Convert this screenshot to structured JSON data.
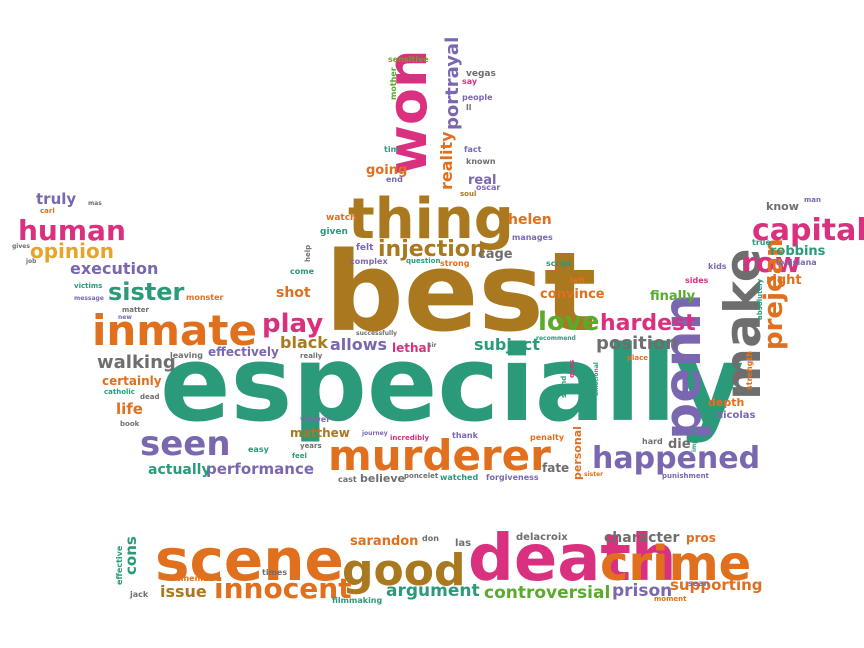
{
  "colors": {
    "teal": "#2a9a7a",
    "orange": "#e0701e",
    "magenta": "#d9307f",
    "brown": "#a9781f",
    "gray": "#6e6e6e",
    "purple": "#7a67b0",
    "green": "#5aaa2e",
    "yellow": "#e6a52a"
  },
  "words": [
    {
      "text": "especially",
      "color": "teal"
    },
    {
      "text": "best",
      "color": "brown"
    },
    {
      "text": "death",
      "color": "magenta"
    },
    {
      "text": "scene",
      "color": "orange"
    },
    {
      "text": "crime",
      "color": "orange"
    },
    {
      "text": "good",
      "color": "brown"
    },
    {
      "text": "murderer",
      "color": "orange"
    },
    {
      "text": "thing",
      "color": "brown"
    },
    {
      "text": "inmate",
      "color": "orange"
    },
    {
      "text": "penn",
      "color": "purple"
    },
    {
      "text": "make",
      "color": "gray"
    },
    {
      "text": "won",
      "color": "magenta"
    },
    {
      "text": "seen",
      "color": "purple"
    },
    {
      "text": "happened",
      "color": "purple"
    },
    {
      "text": "innocent",
      "color": "orange"
    },
    {
      "text": "capital",
      "color": "magenta"
    },
    {
      "text": "human",
      "color": "magenta"
    },
    {
      "text": "sister",
      "color": "teal"
    },
    {
      "text": "play",
      "color": "magenta"
    },
    {
      "text": "love",
      "color": "green"
    },
    {
      "text": "row",
      "color": "magenta"
    },
    {
      "text": "prejean",
      "color": "orange"
    },
    {
      "text": "injection",
      "color": "brown"
    },
    {
      "text": "opinion",
      "color": "yellow"
    },
    {
      "text": "execution",
      "color": "purple"
    },
    {
      "text": "walking",
      "color": "gray"
    },
    {
      "text": "hardest",
      "color": "magenta"
    },
    {
      "text": "position",
      "color": "gray"
    },
    {
      "text": "subject",
      "color": "teal"
    },
    {
      "text": "allows",
      "color": "purple"
    },
    {
      "text": "black",
      "color": "brown"
    },
    {
      "text": "shot",
      "color": "orange"
    },
    {
      "text": "performance",
      "color": "purple"
    },
    {
      "text": "actually",
      "color": "teal"
    },
    {
      "text": "matthew",
      "color": "brown"
    },
    {
      "text": "sarandon",
      "color": "orange"
    },
    {
      "text": "argument",
      "color": "teal"
    },
    {
      "text": "controversial",
      "color": "green"
    },
    {
      "text": "prison",
      "color": "purple"
    },
    {
      "text": "supporting",
      "color": "orange"
    },
    {
      "text": "character",
      "color": "gray"
    },
    {
      "text": "issue",
      "color": "brown"
    },
    {
      "text": "cons",
      "color": "teal"
    },
    {
      "text": "portrayal",
      "color": "purple"
    },
    {
      "text": "reality",
      "color": "orange"
    },
    {
      "text": "going",
      "color": "orange"
    },
    {
      "text": "real",
      "color": "purple"
    },
    {
      "text": "helen",
      "color": "orange"
    },
    {
      "text": "cage",
      "color": "gray"
    },
    {
      "text": "truly",
      "color": "purple"
    },
    {
      "text": "robbins",
      "color": "teal"
    },
    {
      "text": "right",
      "color": "orange"
    },
    {
      "text": "finally",
      "color": "green"
    },
    {
      "text": "convince",
      "color": "orange"
    },
    {
      "text": "effectively",
      "color": "purple"
    },
    {
      "text": "certainly",
      "color": "orange"
    },
    {
      "text": "life",
      "color": "orange"
    },
    {
      "text": "depth",
      "color": "orange"
    },
    {
      "text": "nicolas",
      "color": "purple"
    },
    {
      "text": "die",
      "color": "gray"
    },
    {
      "text": "fate",
      "color": "gray"
    },
    {
      "text": "believe",
      "color": "gray"
    },
    {
      "text": "personal",
      "color": "orange"
    },
    {
      "text": "lethal",
      "color": "magenta"
    },
    {
      "text": "know",
      "color": "gray"
    },
    {
      "text": "pros",
      "color": "orange"
    },
    {
      "text": "las",
      "color": "gray"
    },
    {
      "text": "delacroix",
      "color": "gray"
    },
    {
      "text": "don",
      "color": "gray"
    },
    {
      "text": "effective",
      "color": "teal"
    },
    {
      "text": "cinema",
      "color": "orange"
    },
    {
      "text": "filmmaking",
      "color": "teal"
    },
    {
      "text": "jack",
      "color": "gray"
    },
    {
      "text": "times",
      "color": "gray"
    },
    {
      "text": "sean",
      "color": "purple"
    },
    {
      "text": "moment",
      "color": "orange"
    },
    {
      "text": "sensitive",
      "color": "green"
    },
    {
      "text": "mother",
      "color": "green"
    },
    {
      "text": "vegas",
      "color": "gray"
    },
    {
      "text": "say",
      "color": "magenta"
    },
    {
      "text": "people",
      "color": "purple"
    },
    {
      "text": "ll",
      "color": "gray"
    },
    {
      "text": "fact",
      "color": "purple"
    },
    {
      "text": "known",
      "color": "gray"
    },
    {
      "text": "oscar",
      "color": "purple"
    },
    {
      "text": "soul",
      "color": "brown"
    },
    {
      "text": "tim",
      "color": "teal"
    },
    {
      "text": "end",
      "color": "purple"
    },
    {
      "text": "watch",
      "color": "orange"
    },
    {
      "text": "given",
      "color": "teal"
    },
    {
      "text": "felt",
      "color": "purple"
    },
    {
      "text": "complex",
      "color": "purple"
    },
    {
      "text": "question",
      "color": "teal"
    },
    {
      "text": "strong",
      "color": "orange"
    },
    {
      "text": "help",
      "color": "gray"
    },
    {
      "text": "come",
      "color": "teal"
    },
    {
      "text": "manages",
      "color": "purple"
    },
    {
      "text": "script",
      "color": "teal"
    },
    {
      "text": "left",
      "color": "orange"
    },
    {
      "text": "kids",
      "color": "purple"
    },
    {
      "text": "sides",
      "color": "magenta"
    },
    {
      "text": "strength",
      "color": "orange"
    },
    {
      "text": "absolutely",
      "color": "teal"
    },
    {
      "text": "true",
      "color": "teal"
    },
    {
      "text": "louisiana",
      "color": "purple"
    },
    {
      "text": "man",
      "color": "purple"
    },
    {
      "text": "carl",
      "color": "orange"
    },
    {
      "text": "mas",
      "color": "gray"
    },
    {
      "text": "gives",
      "color": "gray"
    },
    {
      "text": "job",
      "color": "gray"
    },
    {
      "text": "victims",
      "color": "teal"
    },
    {
      "text": "message",
      "color": "purple"
    },
    {
      "text": "matter",
      "color": "gray"
    },
    {
      "text": "new",
      "color": "purple"
    },
    {
      "text": "monster",
      "color": "orange"
    },
    {
      "text": "leaving",
      "color": "gray"
    },
    {
      "text": "catholic",
      "color": "teal"
    },
    {
      "text": "dead",
      "color": "gray"
    },
    {
      "text": "book",
      "color": "gray"
    },
    {
      "text": "successfully",
      "color": "gray"
    },
    {
      "text": "really",
      "color": "gray"
    },
    {
      "text": "sir",
      "color": "gray"
    },
    {
      "text": "recommend",
      "color": "teal"
    },
    {
      "text": "emotional",
      "color": "teal"
    },
    {
      "text": "stand",
      "color": "teal"
    },
    {
      "text": "eyes",
      "color": "magenta"
    },
    {
      "text": "place",
      "color": "orange"
    },
    {
      "text": "impact",
      "color": "teal"
    },
    {
      "text": "hard",
      "color": "gray"
    },
    {
      "text": "penalty",
      "color": "orange"
    },
    {
      "text": "thank",
      "color": "purple"
    },
    {
      "text": "incredibly",
      "color": "magenta"
    },
    {
      "text": "journey",
      "color": "purple"
    },
    {
      "text": "viewer",
      "color": "purple"
    },
    {
      "text": "years",
      "color": "gray"
    },
    {
      "text": "feel",
      "color": "teal"
    },
    {
      "text": "easy",
      "color": "teal"
    },
    {
      "text": "cast",
      "color": "gray"
    },
    {
      "text": "poncelet",
      "color": "gray"
    },
    {
      "text": "watched",
      "color": "teal"
    },
    {
      "text": "forgiveness",
      "color": "purple"
    },
    {
      "text": "sister",
      "color": "orange"
    },
    {
      "text": "punishment",
      "color": "purple"
    }
  ]
}
